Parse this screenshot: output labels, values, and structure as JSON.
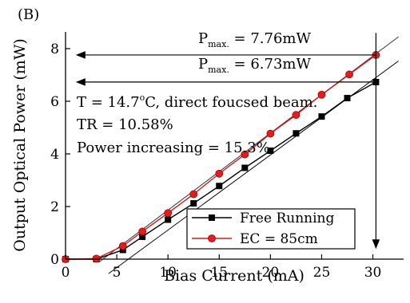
{
  "chart_data": {
    "type": "line",
    "panel_label": "(B)",
    "xlabel": "Bias Current (mA)",
    "ylabel": "Output Optical Power (mW)",
    "xlim": [
      0,
      33
    ],
    "ylim": [
      0,
      9
    ],
    "xticks": [
      0,
      5,
      10,
      15,
      20,
      25,
      30
    ],
    "yticks": [
      0,
      2,
      4,
      6,
      8
    ],
    "grid": false,
    "legend_position": "bottom-right",
    "series": [
      {
        "name": "Free Running",
        "color": "#000000",
        "marker": "square",
        "x": [
          0,
          3,
          5.6,
          7.5,
          10,
          12.5,
          15,
          17.5,
          20,
          22.5,
          25,
          27.5,
          30.3
        ],
        "y": [
          0,
          0,
          0.35,
          0.85,
          1.5,
          2.12,
          2.78,
          3.47,
          4.12,
          4.78,
          5.42,
          6.12,
          6.73
        ],
        "fit": {
          "x": [
            4.2,
            32.5
          ],
          "y": [
            -0.55,
            7.53
          ]
        }
      },
      {
        "name": "EC = 85cm",
        "color": "#d01c1c",
        "marker": "circle",
        "x": [
          0,
          3,
          5.6,
          7.5,
          10,
          12.5,
          15,
          17.5,
          20,
          22.5,
          25,
          27.7,
          30.3
        ],
        "y": [
          0,
          0.02,
          0.5,
          1.05,
          1.75,
          2.47,
          3.25,
          3.98,
          4.77,
          5.48,
          6.25,
          7.02,
          7.76
        ],
        "fit": {
          "x": [
            3.3,
            32.5
          ],
          "y": [
            -0.1,
            8.45
          ]
        }
      }
    ],
    "annotations": {
      "pmax1_label": "P",
      "pmax1_sub": "max.",
      "pmax1_value": " = 7.76mW",
      "pmax1_y": 7.76,
      "pmax2_label": "P",
      "pmax2_sub": "max.",
      "pmax2_value": " = 6.73mW",
      "pmax2_y": 6.73,
      "vertical_arrow_x": 30.3,
      "temp_line_pre": "T = 14.7",
      "temp_line_deg": "o",
      "temp_line_post": "C, direct foucsed beam.",
      "tr_line": "TR = 10.58%",
      "power_line": "Power increasing = 15.3%"
    }
  }
}
